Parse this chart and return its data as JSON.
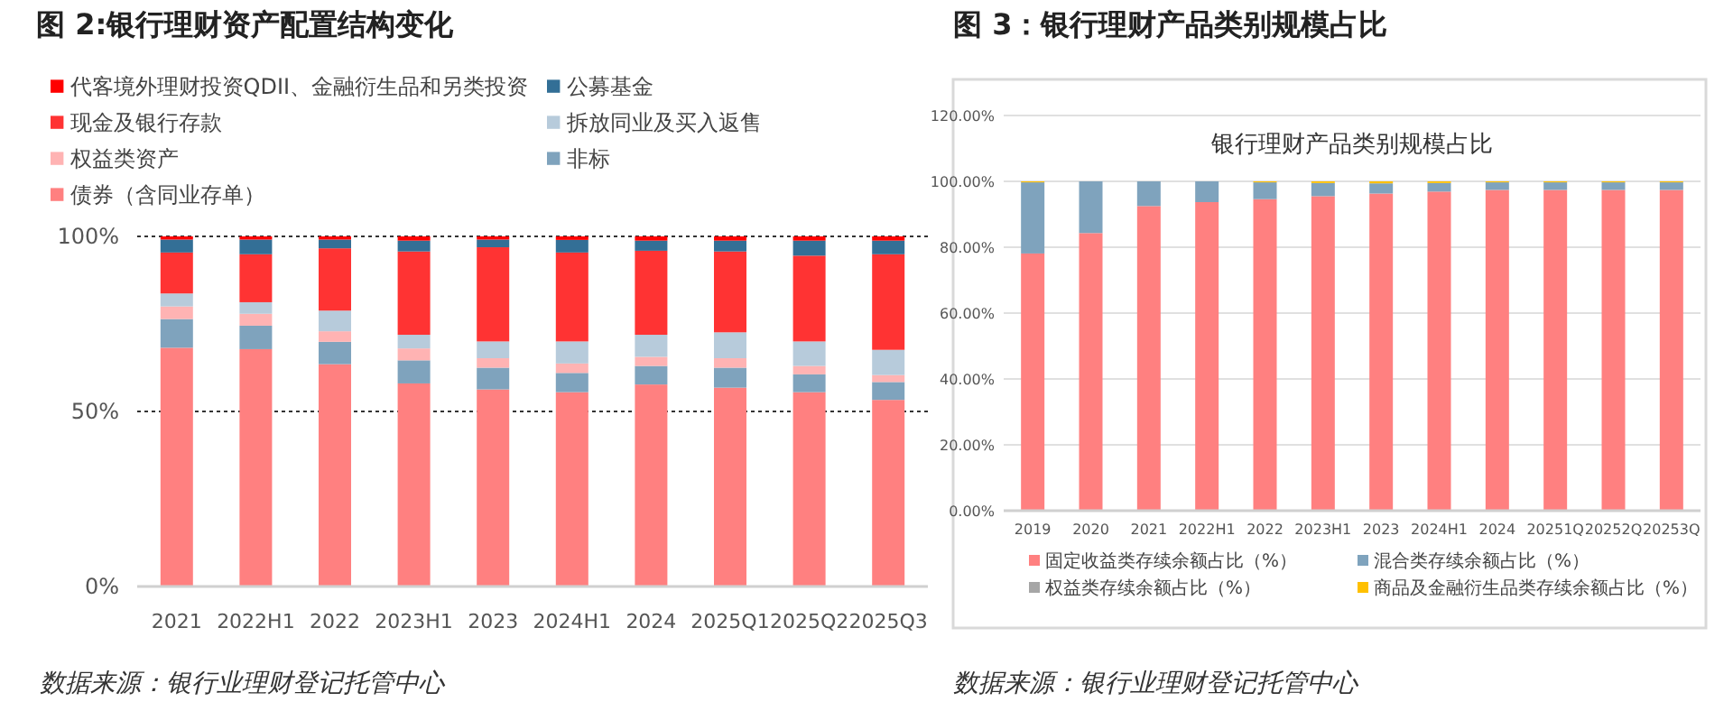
{
  "chart_data": [
    {
      "type": "bar",
      "title": "图 2:银行理财资产配置结构变化",
      "stacked": true,
      "grid": "y",
      "legend": "top",
      "categories": [
        "2021",
        "2022H1",
        "2022",
        "2023H1",
        "2023",
        "2024H1",
        "2024",
        "2025Q1",
        "2025Q2",
        "2025Q3"
      ],
      "ylim": [
        0,
        100
      ],
      "yticks": [
        {
          "value": 0,
          "label": "0%"
        },
        {
          "value": 50,
          "label": "50%"
        },
        {
          "value": 100,
          "label": "100%"
        }
      ],
      "series": [
        {
          "name": "债券（含同业存单）",
          "color": "#ff8080",
          "values": [
            68.2,
            67.8,
            63.5,
            58.0,
            56.3,
            55.5,
            57.7,
            56.8,
            55.5,
            53.3
          ]
        },
        {
          "name": "非标",
          "color": "#7fa3bd",
          "values": [
            8.2,
            6.7,
            6.4,
            6.6,
            6.2,
            5.5,
            5.3,
            5.7,
            5.1,
            5.1
          ]
        },
        {
          "name": "权益类资产",
          "color": "#ffb3b3",
          "values": [
            3.6,
            3.4,
            3.0,
            3.4,
            2.7,
            2.7,
            2.6,
            2.7,
            2.4,
            2.0
          ]
        },
        {
          "name": "拆放同业及买入返售",
          "color": "#b7cbdb",
          "values": [
            3.7,
            3.3,
            5.9,
            3.9,
            4.8,
            6.3,
            6.3,
            7.4,
            7.0,
            7.2
          ]
        },
        {
          "name": "现金及银行存款",
          "color": "#ff3333",
          "values": [
            11.7,
            13.7,
            17.8,
            23.8,
            26.9,
            25.4,
            24.0,
            23.1,
            24.5,
            27.3
          ]
        },
        {
          "name": "公募基金",
          "color": "#336f96",
          "values": [
            3.7,
            4.2,
            2.5,
            3.1,
            2.2,
            3.6,
            2.9,
            3.1,
            4.3,
            3.9
          ]
        },
        {
          "name": "代客境外理财投资QDII、金融衍生品和另类投资",
          "color": "#ff0000",
          "values": [
            0.9,
            0.9,
            0.9,
            1.2,
            0.9,
            1.0,
            1.2,
            1.2,
            1.2,
            1.2
          ]
        }
      ],
      "annotations": [
        "数据来源：银行业理财登记托管中心"
      ]
    },
    {
      "type": "bar",
      "title": "图 3：银行理财产品类别规模占比",
      "subtitle": "银行理财产品类别规模占比",
      "stacked": true,
      "grid": "y",
      "legend": "bottom",
      "categories": [
        "2019",
        "2020",
        "2021",
        "2022H1",
        "2022",
        "2023H1",
        "2023",
        "2024H1",
        "2024",
        "20251Q",
        "20252Q",
        "20253Q"
      ],
      "ylim": [
        0,
        120
      ],
      "yticks": [
        {
          "value": 0,
          "label": "0.00%"
        },
        {
          "value": 20,
          "label": "20.00%"
        },
        {
          "value": 40,
          "label": "40.00%"
        },
        {
          "value": 60,
          "label": "60.00%"
        },
        {
          "value": 80,
          "label": "80.00%"
        },
        {
          "value": 100,
          "label": "100.00%"
        },
        {
          "value": 120,
          "label": "120.00%"
        }
      ],
      "series": [
        {
          "name": "固定收益类存续余额占比（%）",
          "color": "#ff8080",
          "values": [
            78.1,
            84.3,
            92.5,
            93.7,
            94.6,
            95.5,
            96.3,
            96.9,
            97.4,
            97.4,
            97.4,
            97.4
          ]
        },
        {
          "name": "混合类存续余额占比（%）",
          "color": "#7fa3bd",
          "values": [
            21.6,
            15.7,
            7.5,
            6.3,
            5.1,
            4.0,
            3.1,
            2.6,
            2.3,
            2.3,
            2.3,
            2.3
          ]
        },
        {
          "name": "权益类存续余额占比（%）",
          "color": "#a6a6a6",
          "values": [
            null,
            null,
            null,
            null,
            null,
            null,
            null,
            null,
            null,
            null,
            null,
            null
          ]
        },
        {
          "name": "商品及金融衍生品类存续余额占比（%）",
          "color": "#ffc000",
          "values": [
            0.3,
            0,
            0,
            0,
            0.3,
            0.5,
            0.6,
            0.5,
            0.3,
            0.3,
            0.3,
            0.3
          ]
        }
      ],
      "annotations": [
        "数据来源：银行业理财登记托管中心"
      ]
    }
  ]
}
